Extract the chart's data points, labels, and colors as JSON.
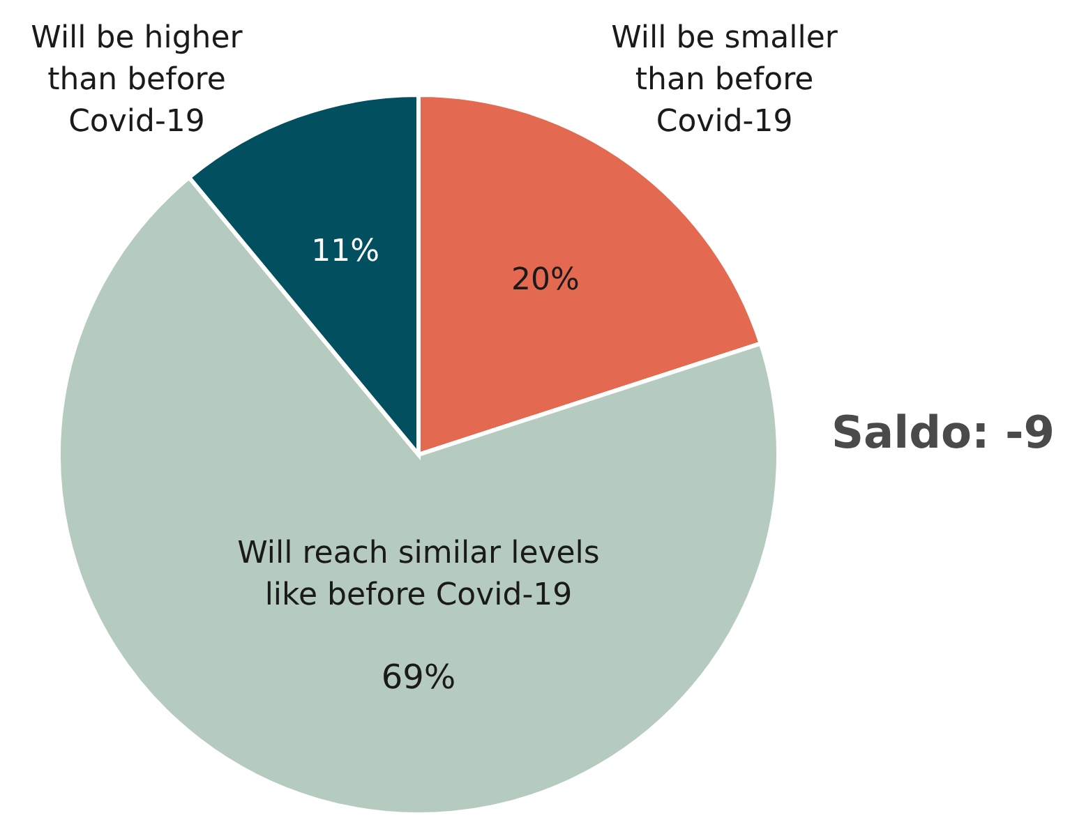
{
  "chart_data": {
    "type": "pie",
    "categories": [
      "Will be smaller than before Covid-19",
      "Will reach similar levels like before Covid-19",
      "Will be higher than before Covid-19"
    ],
    "values": [
      20,
      69,
      11
    ],
    "value_labels": [
      "20%",
      "69%",
      "11%"
    ],
    "colors": [
      "#e36a50",
      "#b5cbbf",
      "#02505f"
    ],
    "annotations": [
      "Saldo: -9"
    ]
  }
}
